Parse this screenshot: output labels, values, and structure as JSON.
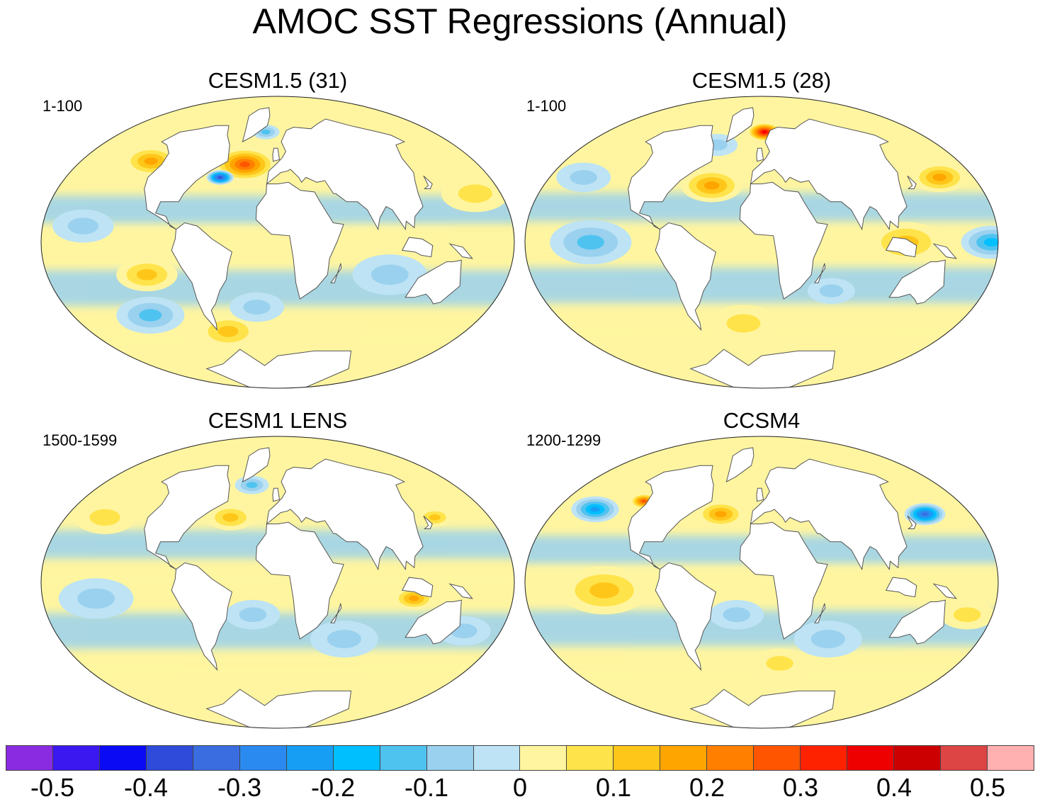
{
  "title": "AMOC SST Regressions (Annual)",
  "panels": [
    {
      "title": "CESM1.5 (31)",
      "period": "1-100"
    },
    {
      "title": "CESM1.5 (28)",
      "period": "1-100"
    },
    {
      "title": "CESM1 LENS",
      "period": "1500-1599"
    },
    {
      "title": "CCSM4",
      "period": "1200-1299"
    }
  ],
  "colorbar": {
    "colors": [
      "#8a2be2",
      "#3b17f0",
      "#0a0af5",
      "#2e4bd9",
      "#3a6de0",
      "#2b8af0",
      "#169ef5",
      "#00bfff",
      "#4fc3f0",
      "#9ad1ee",
      "#bde3f5",
      "#fff5a0",
      "#ffe34a",
      "#ffc61a",
      "#ffa500",
      "#ff7f00",
      "#ff5500",
      "#ff2200",
      "#ee0000",
      "#cc0000",
      "#dd4444",
      "#ffb0b0"
    ],
    "labels": [
      "-0.5",
      "-0.4",
      "-0.3",
      "-0.2",
      "-0.1",
      "0",
      "0.1",
      "0.2",
      "0.3",
      "0.4",
      "0.5"
    ],
    "label_values": [
      -0.5,
      -0.4,
      -0.3,
      -0.2,
      -0.1,
      0,
      0.1,
      0.2,
      0.3,
      0.4,
      0.5
    ]
  },
  "anomalies": [
    [
      {
        "lon": -35,
        "lat": 48,
        "val": 0.3,
        "r": 18
      },
      {
        "lon": -55,
        "lat": 40,
        "val": -0.4,
        "r": 8
      },
      {
        "lon": -140,
        "lat": 50,
        "val": 0.2,
        "r": 16
      },
      {
        "lon": -105,
        "lat": -20,
        "val": 0.15,
        "r": 18
      },
      {
        "lon": -60,
        "lat": -55,
        "val": 0.15,
        "r": 18
      },
      {
        "lon": -130,
        "lat": -45,
        "val": -0.15,
        "r": 20
      },
      {
        "lon": -20,
        "lat": -40,
        "val": -0.12,
        "r": 16
      },
      {
        "lon": 170,
        "lat": 30,
        "val": 0.12,
        "r": 20
      },
      {
        "lon": 90,
        "lat": -20,
        "val": -0.1,
        "r": 22
      },
      {
        "lon": -20,
        "lat": 68,
        "val": -0.15,
        "r": 8
      },
      {
        "lon": -150,
        "lat": 10,
        "val": -0.1,
        "r": 18
      }
    ],
    [
      {
        "lon": 5,
        "lat": 68,
        "val": 0.4,
        "r": 10
      },
      {
        "lon": -45,
        "lat": 35,
        "val": 0.2,
        "r": 18
      },
      {
        "lon": 170,
        "lat": 40,
        "val": 0.2,
        "r": 16
      },
      {
        "lon": 110,
        "lat": 0,
        "val": 0.15,
        "r": 22
      },
      {
        "lon": 175,
        "lat": 0,
        "val": -0.2,
        "r": 18
      },
      {
        "lon": -130,
        "lat": 0,
        "val": -0.15,
        "r": 24
      },
      {
        "lon": -170,
        "lat": 40,
        "val": -0.12,
        "r": 16
      },
      {
        "lon": -60,
        "lat": 60,
        "val": -0.1,
        "r": 12
      },
      {
        "lon": -20,
        "lat": -50,
        "val": 0.12,
        "r": 20
      },
      {
        "lon": 60,
        "lat": -30,
        "val": -0.1,
        "r": 14
      }
    ],
    [
      {
        "lon": -45,
        "lat": 40,
        "val": 0.15,
        "r": 14
      },
      {
        "lon": -165,
        "lat": 40,
        "val": 0.12,
        "r": 18
      },
      {
        "lon": 105,
        "lat": -10,
        "val": 0.2,
        "r": 12
      },
      {
        "lon": 150,
        "lat": 40,
        "val": 0.15,
        "r": 10
      },
      {
        "lon": -35,
        "lat": 60,
        "val": -0.15,
        "r": 10
      },
      {
        "lon": -140,
        "lat": -10,
        "val": -0.1,
        "r": 22
      },
      {
        "lon": 60,
        "lat": -35,
        "val": -0.1,
        "r": 20
      },
      {
        "lon": -20,
        "lat": -20,
        "val": -0.1,
        "r": 16
      },
      {
        "lon": 160,
        "lat": -30,
        "val": -0.1,
        "r": 16
      }
    ],
    [
      {
        "lon": -170,
        "lat": 45,
        "val": -0.25,
        "r": 14
      },
      {
        "lon": 160,
        "lat": 42,
        "val": -0.35,
        "r": 12
      },
      {
        "lon": -130,
        "lat": 50,
        "val": 0.3,
        "r": 8
      },
      {
        "lon": -40,
        "lat": 42,
        "val": 0.2,
        "r": 14
      },
      {
        "lon": -120,
        "lat": -5,
        "val": 0.15,
        "r": 26
      },
      {
        "lon": -20,
        "lat": -20,
        "val": -0.12,
        "r": 16
      },
      {
        "lon": 60,
        "lat": -35,
        "val": -0.12,
        "r": 20
      },
      {
        "lon": 20,
        "lat": -50,
        "val": 0.12,
        "r": 16
      },
      {
        "lon": 165,
        "lat": -20,
        "val": 0.12,
        "r": 16
      }
    ]
  ]
}
